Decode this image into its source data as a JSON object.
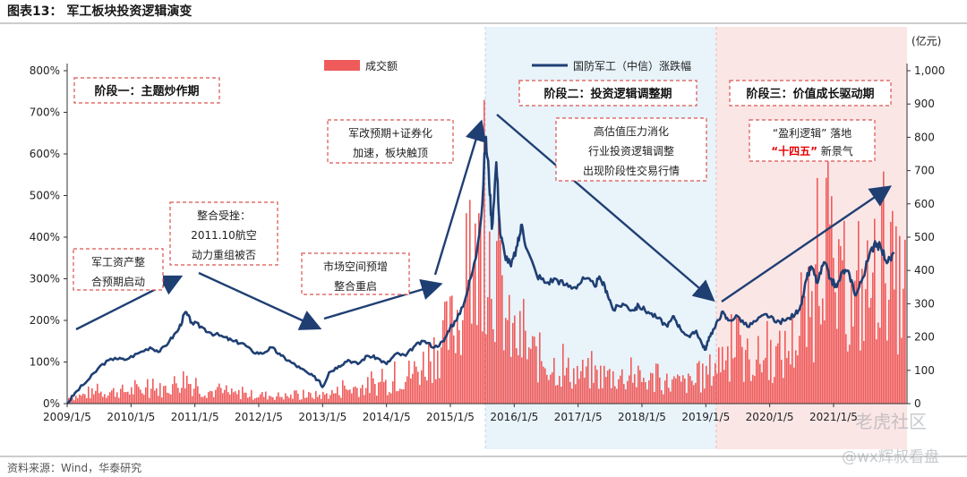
{
  "title": "图表13： 军工板块投资逻辑演变",
  "source": "资料来源：Wind，华泰研究",
  "watermark": {
    "brand": "老虎社区",
    "author": "@wx辉叔看盘"
  },
  "colors": {
    "line": "#1f3f73",
    "bar": "#ef5b5b",
    "stage2_bg": "#e8f3fa",
    "stage3_bg": "#fbe6e6",
    "box": "#d9534f",
    "arrow": "#1f3f73",
    "highlight": "#e60000"
  },
  "chart_data": {
    "type": "bar+line",
    "x_ticks": [
      "2009/1/5",
      "2010/1/5",
      "2011/1/5",
      "2012/1/5",
      "2013/1/5",
      "2014/1/5",
      "2015/1/5",
      "2016/1/5",
      "2017/1/5",
      "2018/1/5",
      "2019/1/5",
      "2020/1/5",
      "2021/1/5"
    ],
    "y_left": {
      "ticks": [
        "0%",
        "100%",
        "200%",
        "300%",
        "400%",
        "500%",
        "600%",
        "700%",
        "800%"
      ],
      "range": [
        0,
        800
      ]
    },
    "y_right": {
      "unit": "(亿元)",
      "ticks": [
        "0",
        "100",
        "200",
        "300",
        "400",
        "500",
        "600",
        "700",
        "800",
        "900",
        "1,000"
      ],
      "range": [
        0,
        1000
      ]
    },
    "legend": [
      {
        "name": "成交额",
        "kind": "bar"
      },
      {
        "name": "国防军工（中信）涨跌幅",
        "kind": "line"
      }
    ],
    "series_line": {
      "name": "国防军工（中信）涨跌幅",
      "points": [
        [
          2009.0,
          0
        ],
        [
          2009.15,
          30
        ],
        [
          2009.35,
          60
        ],
        [
          2009.55,
          95
        ],
        [
          2009.75,
          110
        ],
        [
          2009.9,
          105
        ],
        [
          2010.1,
          120
        ],
        [
          2010.3,
          135
        ],
        [
          2010.45,
          125
        ],
        [
          2010.6,
          150
        ],
        [
          2010.75,
          180
        ],
        [
          2010.85,
          220
        ],
        [
          2010.95,
          195
        ],
        [
          2011.1,
          185
        ],
        [
          2011.25,
          170
        ],
        [
          2011.45,
          160
        ],
        [
          2011.6,
          150
        ],
        [
          2011.75,
          145
        ],
        [
          2011.9,
          125
        ],
        [
          2012.05,
          120
        ],
        [
          2012.2,
          135
        ],
        [
          2012.35,
          115
        ],
        [
          2012.5,
          100
        ],
        [
          2012.65,
          85
        ],
        [
          2012.8,
          70
        ],
        [
          2012.95,
          55
        ],
        [
          2013.0,
          40
        ],
        [
          2013.1,
          75
        ],
        [
          2013.25,
          90
        ],
        [
          2013.4,
          105
        ],
        [
          2013.55,
          95
        ],
        [
          2013.7,
          115
        ],
        [
          2013.85,
          110
        ],
        [
          2014.0,
          95
        ],
        [
          2014.15,
          120
        ],
        [
          2014.3,
          115
        ],
        [
          2014.45,
          140
        ],
        [
          2014.6,
          150
        ],
        [
          2014.75,
          135
        ],
        [
          2014.9,
          150
        ],
        [
          2015.0,
          185
        ],
        [
          2015.1,
          200
        ],
        [
          2015.25,
          260
        ],
        [
          2015.4,
          350
        ],
        [
          2015.5,
          480
        ],
        [
          2015.55,
          640
        ],
        [
          2015.6,
          560
        ],
        [
          2015.65,
          420
        ],
        [
          2015.72,
          580
        ],
        [
          2015.78,
          410
        ],
        [
          2015.85,
          360
        ],
        [
          2015.95,
          330
        ],
        [
          2016.05,
          380
        ],
        [
          2016.12,
          430
        ],
        [
          2016.2,
          370
        ],
        [
          2016.35,
          310
        ],
        [
          2016.5,
          290
        ],
        [
          2016.65,
          300
        ],
        [
          2016.8,
          285
        ],
        [
          2016.95,
          280
        ],
        [
          2017.1,
          300
        ],
        [
          2017.25,
          285
        ],
        [
          2017.35,
          300
        ],
        [
          2017.45,
          270
        ],
        [
          2017.55,
          225
        ],
        [
          2017.7,
          240
        ],
        [
          2017.85,
          225
        ],
        [
          2017.95,
          235
        ],
        [
          2018.1,
          220
        ],
        [
          2018.25,
          205
        ],
        [
          2018.4,
          185
        ],
        [
          2018.5,
          210
        ],
        [
          2018.6,
          180
        ],
        [
          2018.75,
          160
        ],
        [
          2018.85,
          175
        ],
        [
          2018.95,
          140
        ],
        [
          2019.0,
          130
        ],
        [
          2019.05,
          160
        ],
        [
          2019.15,
          185
        ],
        [
          2019.25,
          220
        ],
        [
          2019.35,
          200
        ],
        [
          2019.5,
          210
        ],
        [
          2019.65,
          185
        ],
        [
          2019.8,
          200
        ],
        [
          2019.95,
          215
        ],
        [
          2020.1,
          195
        ],
        [
          2020.25,
          200
        ],
        [
          2020.4,
          215
        ],
        [
          2020.5,
          240
        ],
        [
          2020.58,
          300
        ],
        [
          2020.65,
          330
        ],
        [
          2020.75,
          290
        ],
        [
          2020.85,
          340
        ],
        [
          2020.95,
          300
        ],
        [
          2021.05,
          280
        ],
        [
          2021.15,
          320
        ],
        [
          2021.25,
          310
        ],
        [
          2021.35,
          260
        ],
        [
          2021.45,
          300
        ],
        [
          2021.55,
          350
        ],
        [
          2021.65,
          390
        ],
        [
          2021.75,
          370
        ],
        [
          2021.85,
          340
        ],
        [
          2021.95,
          360
        ]
      ]
    },
    "series_bar": {
      "name": "成交额",
      "profile": [
        [
          2009.0,
          20
        ],
        [
          2009.5,
          40
        ],
        [
          2010.0,
          45
        ],
        [
          2010.5,
          50
        ],
        [
          2010.85,
          90
        ],
        [
          2011.0,
          50
        ],
        [
          2011.5,
          35
        ],
        [
          2012.0,
          30
        ],
        [
          2012.5,
          25
        ],
        [
          2013.0,
          30
        ],
        [
          2013.5,
          55
        ],
        [
          2014.0,
          70
        ],
        [
          2014.5,
          120
        ],
        [
          2015.0,
          260
        ],
        [
          2015.35,
          420
        ],
        [
          2015.5,
          600
        ],
        [
          2015.7,
          480
        ],
        [
          2015.9,
          250
        ],
        [
          2016.3,
          170
        ],
        [
          2016.8,
          110
        ],
        [
          2017.3,
          100
        ],
        [
          2017.8,
          90
        ],
        [
          2018.3,
          75
        ],
        [
          2018.8,
          70
        ],
        [
          2019.0,
          100
        ],
        [
          2019.3,
          180
        ],
        [
          2019.7,
          150
        ],
        [
          2020.2,
          170
        ],
        [
          2020.5,
          260
        ],
        [
          2020.7,
          360
        ],
        [
          2020.85,
          700
        ],
        [
          2021.0,
          380
        ],
        [
          2021.3,
          330
        ],
        [
          2021.6,
          420
        ],
        [
          2021.8,
          560
        ],
        [
          2021.95,
          400
        ]
      ]
    },
    "stages": [
      {
        "label": "阶段一：主题炒作期"
      },
      {
        "label": "阶段二：投资逻辑调整期"
      },
      {
        "label": "阶段三：价值成长驱动期"
      }
    ],
    "annotations": [
      {
        "lines": [
          "军工资产整",
          "合预期启动"
        ]
      },
      {
        "lines": [
          "整合受挫：",
          "2011.10航空",
          "动力重组被否"
        ]
      },
      {
        "lines": [
          "市场空间预增",
          "整合重启"
        ]
      },
      {
        "lines": [
          "军改预期+证券化",
          "加速，板块触顶"
        ]
      },
      {
        "lines": [
          "高估值压力消化",
          "行业投资逻辑调整",
          "出现阶段性交易行情"
        ]
      },
      {
        "lines": [
          "“盈利逻辑”落地",
          "“十四五”新景气"
        ],
        "q1": "“盈利逻辑”",
        "q2": " 落地",
        "q3": "“十四五”",
        "q4": " 新景气"
      }
    ]
  }
}
